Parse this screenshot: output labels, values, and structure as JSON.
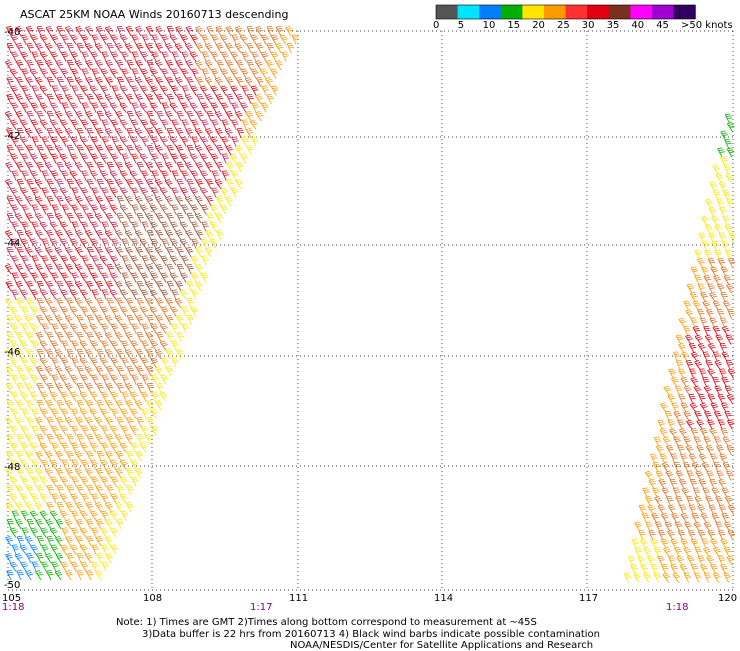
{
  "title": "ASCAT 25KM NOAA Winds 20160713 descending",
  "scale": {
    "colors": [
      "#555555",
      "#00e5ff",
      "#0080ff",
      "#00b000",
      "#ffe600",
      "#ff9a00",
      "#ff3030",
      "#e00010",
      "#7a3020",
      "#ff00ff",
      "#a000d0",
      "#300060"
    ],
    "labels": [
      "0",
      "5",
      "10",
      "15",
      "20",
      "25",
      "30",
      "35",
      "40",
      "45",
      ">50 knots"
    ]
  },
  "axes": {
    "lon": [
      "105",
      "108",
      "111",
      "114",
      "117",
      "120"
    ],
    "lat": [
      "-40",
      "-42",
      "-44",
      "-46",
      "-48",
      "-50"
    ]
  },
  "times": [
    "1:18",
    "1:17",
    "1:18"
  ],
  "notes": [
    "Note: 1) Times are GMT 2)Times along bottom correspond to measurement at ~45S",
    "3)Data buffer is 22 hrs from 20160713 4) Black wind barbs indicate possible contamination",
    "NOAA/NESDIS/Center for Satellite Applications and Research"
  ],
  "legend": {
    "wind_barb_contamination_color": "#000000"
  }
}
